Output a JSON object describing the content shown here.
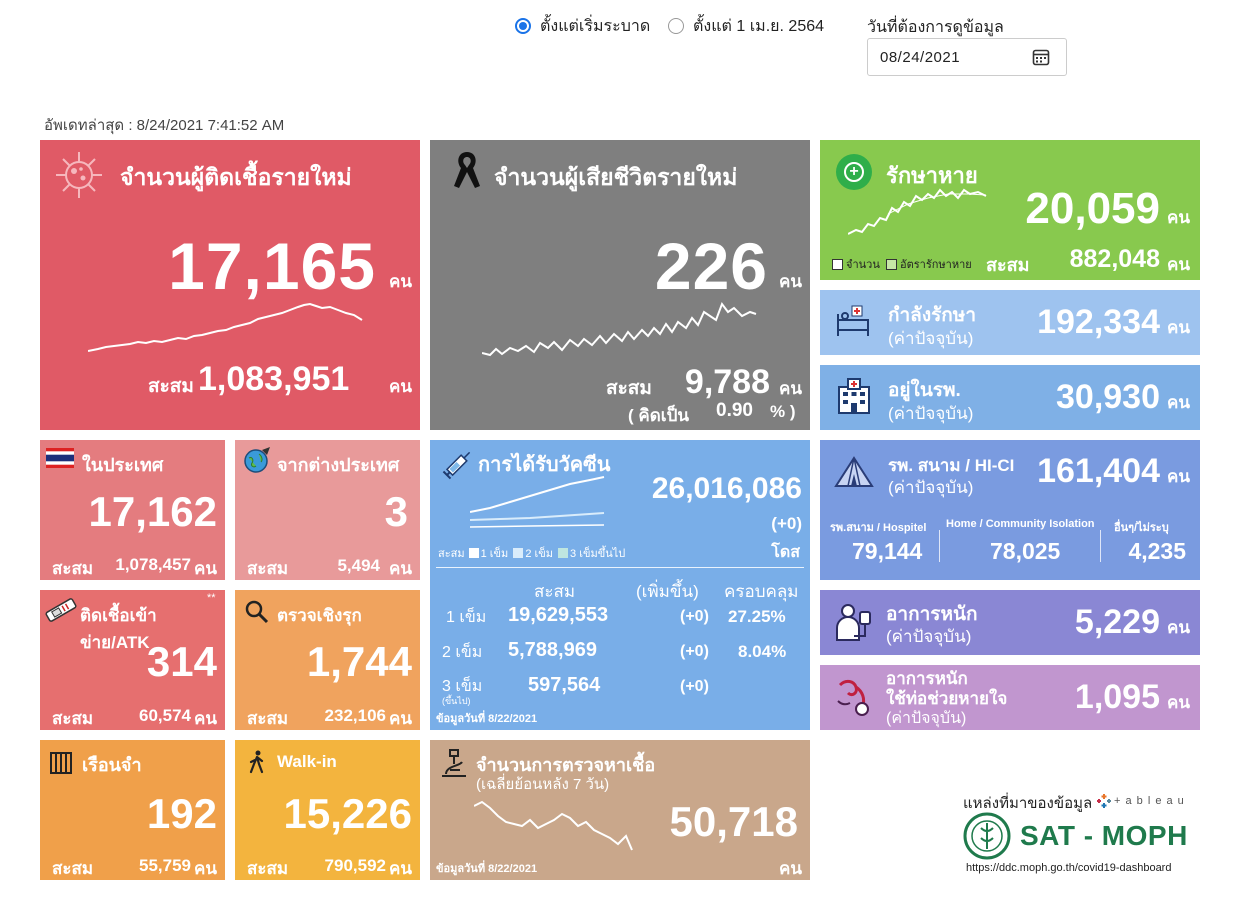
{
  "filter": {
    "radio1_label": "ตั้งแต่เริ่มระบาด",
    "radio2_label": "ตั้งแต่ 1 เม.ย. 2564",
    "date_label": "วันที่ต้องการดูข้อมูล",
    "date_value": "08/24/2021"
  },
  "updated": "อัพเดทล่าสุด : 8/24/2021 7:41:52 AM",
  "unit_person": "คน",
  "cum_label": "สะสม",
  "new_cases": {
    "title": "จำนวนผู้ติดเชื้อรายใหม่",
    "value": "17,165",
    "cum": "1,083,951"
  },
  "deaths": {
    "title": "จำนวนผู้เสียชีวิตรายใหม่",
    "value": "226",
    "cum": "9,788",
    "rate_prefix": "( คิดเป็น",
    "rate": "0.90",
    "rate_suffix": "% )"
  },
  "recovered": {
    "title": "รักษาหาย",
    "value": "20,059",
    "cum": "882,048",
    "legend1": "จำนวน",
    "legend2": "อัตรารักษาหาย"
  },
  "treating": {
    "title": "กำลังรักษา",
    "sub": "(ค่าปัจจุบัน)",
    "value": "192,334"
  },
  "hospital": {
    "title": "อยู่ในรพ.",
    "sub": "(ค่าปัจจุบัน)",
    "value": "30,930"
  },
  "field": {
    "title": "รพ. สนาม / HI-CI",
    "sub": "(ค่าปัจจุบัน)",
    "value": "161,404",
    "cols": [
      {
        "label": "รพ.สนาม / Hospitel",
        "value": "79,144"
      },
      {
        "label": "Home / Community Isolation",
        "value": "78,025"
      },
      {
        "label": "อื่นๆ/ไม่ระบุ",
        "value": "4,235"
      }
    ]
  },
  "severe": {
    "title": "อาการหนัก",
    "sub": "(ค่าปัจจุบัน)",
    "value": "5,229"
  },
  "ventilator": {
    "title1": "อาการหนัก",
    "title2": "ใช้ท่อช่วยหายใจ",
    "sub": "(ค่าปัจจุบัน)",
    "value": "1,095"
  },
  "domestic": {
    "title": "ในประเทศ",
    "value": "17,162",
    "cum": "1,078,457"
  },
  "imported": {
    "title": "จากต่างประเทศ",
    "value": "3",
    "cum": "5,494"
  },
  "atk": {
    "title": "ติดเชื้อเข้าข่าย/ATK",
    "value": "314",
    "cum": "60,574"
  },
  "active": {
    "title": "ตรวจเชิงรุก",
    "value": "1,744",
    "cum": "232,106"
  },
  "prison": {
    "title": "เรือนจำ",
    "value": "192",
    "cum": "55,759"
  },
  "walkin": {
    "title": "Walk-in",
    "value": "15,226",
    "cum": "790,592"
  },
  "vaccine": {
    "title": "การได้รับวัคซีน",
    "total": "26,016,086",
    "delta": "(+0)",
    "unit": "โดส",
    "legend_cum": "สะสม",
    "legend1": "1 เข็ม",
    "legend2": "2 เข็ม",
    "legend3": "3 เข็มขึ้นไป",
    "headers": [
      "สะสม",
      "(เพิ่มขึ้น)",
      "ครอบคลุม"
    ],
    "rows": [
      {
        "label": "1 เข็ม",
        "sub": "",
        "cum": "19,629,553",
        "inc": "(+0)",
        "cov": "27.25%"
      },
      {
        "label": "2 เข็ม",
        "sub": "",
        "cum": "5,788,969",
        "inc": "(+0)",
        "cov": "8.04%"
      },
      {
        "label": "3 เข็ม",
        "sub": "(ขึ้นไป)",
        "cum": "597,564",
        "inc": "(+0)",
        "cov": ""
      }
    ],
    "note": "ข้อมูลวันที่ 8/22/2021"
  },
  "tests": {
    "title": "จำนวนการตรวจหาเชื้อ",
    "sub": "(เฉลี่ยย้อนหลัง 7 วัน)",
    "value": "50,718",
    "note": "ข้อมูลวันที่ 8/22/2021"
  },
  "source": {
    "label": "แหล่งที่มาของข้อมูล",
    "tableau": "+ a b l e a u",
    "org": "SAT - MOPH",
    "url": "https://ddc.moph.go.th/covid19-dashboard"
  },
  "colors": {
    "new_cases": "#e05a66",
    "deaths": "#7f7f7f",
    "recovered": "#88c94e",
    "treating": "#9ec3ef",
    "hospital": "#7fb0e6",
    "field": "#7a9be0",
    "severe": "#8a87d4",
    "ventilator": "#c196cf",
    "domestic": "#e47c7f",
    "imported": "#e89a9a",
    "atk": "#e66f6f",
    "active": "#f0a35e",
    "prison": "#f0a04a",
    "walkin": "#f3b43e",
    "vaccine": "#79aee8",
    "tests": "#c9a78b"
  }
}
